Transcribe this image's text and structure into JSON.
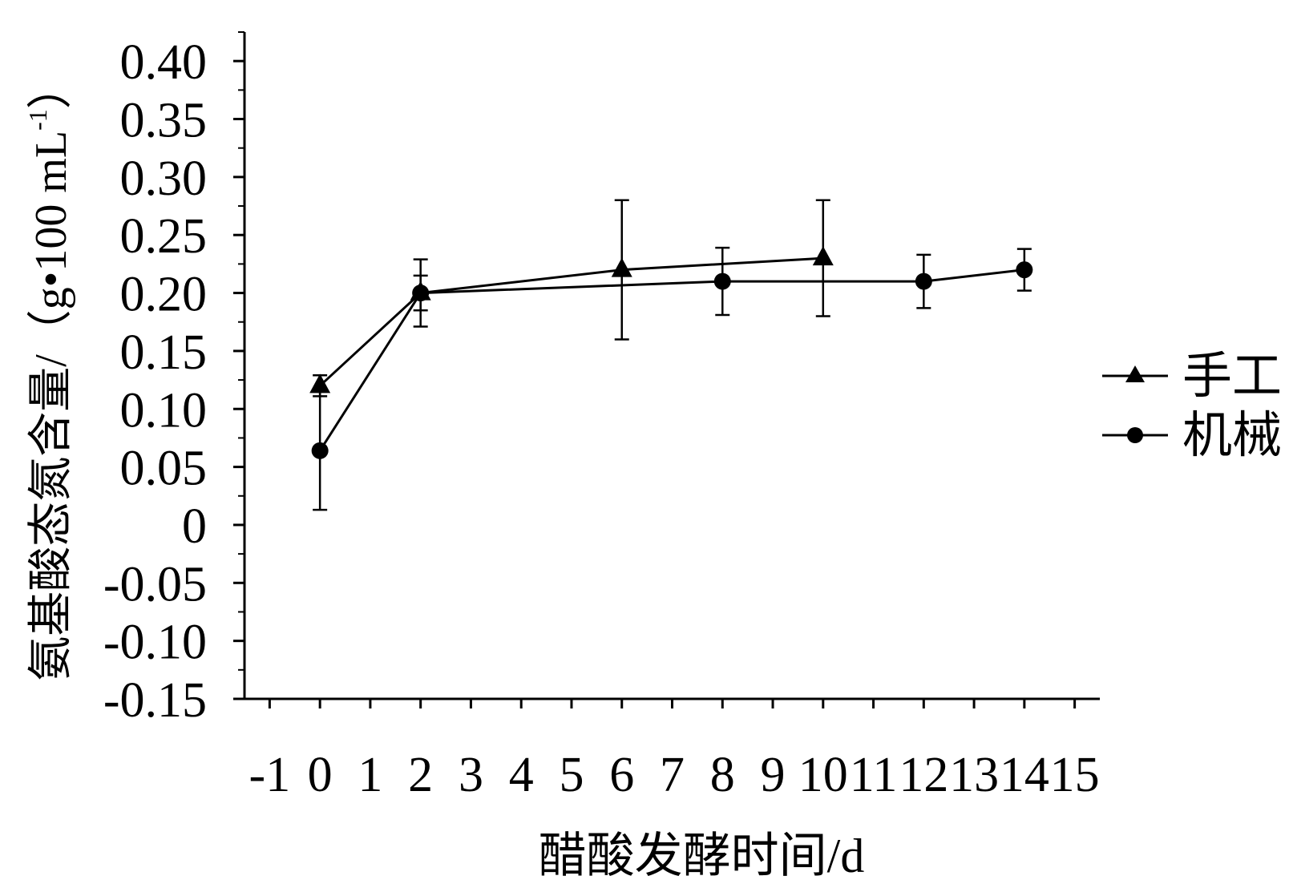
{
  "chart_data": {
    "type": "line",
    "title": "",
    "xlabel": "醋酸发酵时间/d",
    "ylabel_main": "氨基酸态氮含量/（g•100 mL",
    "ylabel_sup": "-1",
    "ylabel_close": "）",
    "xlim": [
      -1.5,
      15.5
    ],
    "ylim": [
      -0.15,
      0.425
    ],
    "x_ticks": [
      -1,
      0,
      1,
      2,
      3,
      4,
      5,
      6,
      7,
      8,
      9,
      10,
      11,
      12,
      13,
      14,
      15
    ],
    "x_tick_labels": [
      "-1",
      "0",
      "1",
      "2",
      "3",
      "4",
      "5",
      "6",
      "7",
      "8",
      "9",
      "10",
      "11",
      "12",
      "13",
      "14",
      "15"
    ],
    "y_ticks": [
      0.4,
      0.35,
      0.3,
      0.25,
      0.2,
      0.15,
      0.1,
      0.05,
      0,
      -0.05,
      -0.1,
      -0.15
    ],
    "y_tick_labels": [
      "0.40",
      "0.35",
      "0.30",
      "0.25",
      "0.20",
      "0.15",
      "0.10",
      "0.05",
      "0",
      "-0.05",
      "-0.10",
      "-0.15"
    ],
    "legend_position": "right",
    "series": [
      {
        "name": "手工",
        "marker": "triangle",
        "x": [
          0,
          2,
          6,
          10
        ],
        "y": [
          0.12,
          0.2,
          0.22,
          0.23
        ],
        "err": [
          0.009,
          0.029,
          0.06,
          0.05
        ]
      },
      {
        "name": "机械",
        "marker": "circle",
        "x": [
          0,
          2,
          8,
          12,
          14
        ],
        "y": [
          0.064,
          0.2,
          0.21,
          0.21,
          0.22
        ],
        "err": [
          0.051,
          0.015,
          0.029,
          0.023,
          0.018
        ]
      }
    ]
  }
}
